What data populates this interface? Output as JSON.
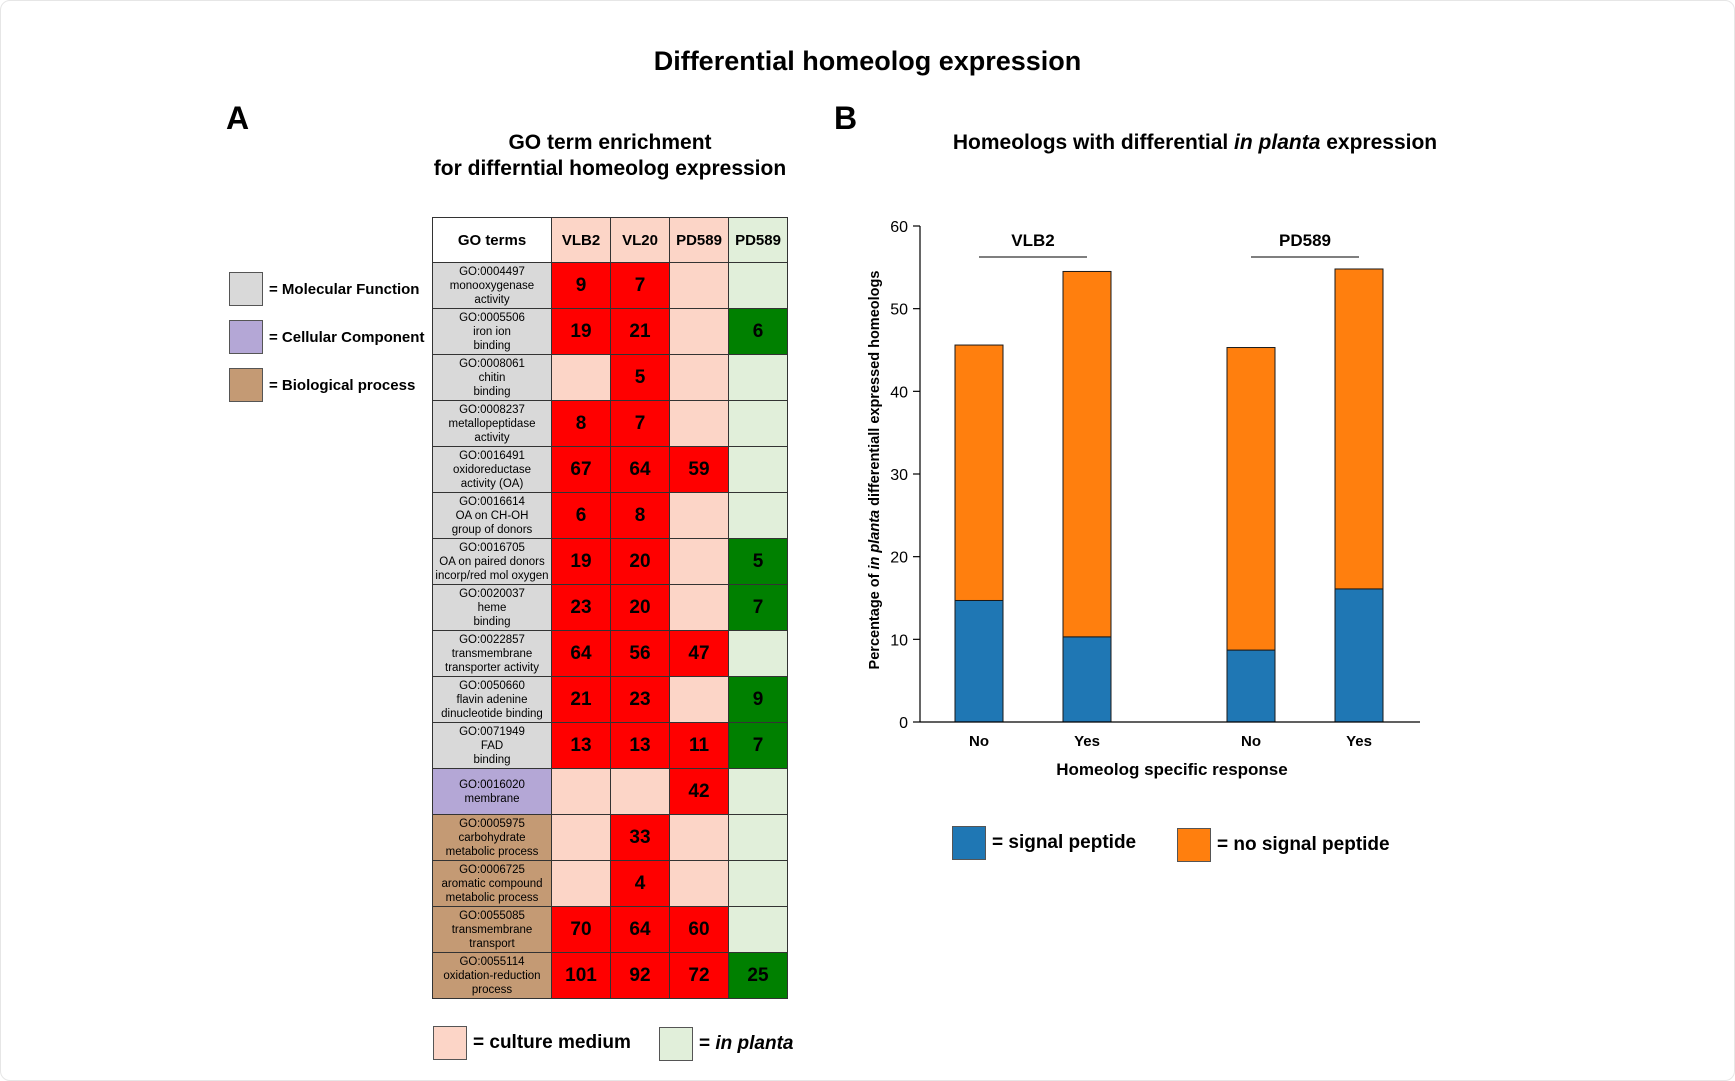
{
  "title": "Differential homeolog expression",
  "panel_a": {
    "letter": "A",
    "title_line1": "GO term enrichment",
    "title_line2": "for differntial homeolog expression",
    "category_legend": [
      {
        "label": "= Molecular Function",
        "color": "#d9d9d9"
      },
      {
        "label": "= Cellular Component",
        "color": "#b4a7d6"
      },
      {
        "label": "= Biological process",
        "color": "#c49a74"
      }
    ],
    "colors": {
      "molecular_function": "#d9d9d9",
      "cellular_component": "#b4a7d6",
      "biological_process": "#c49a74",
      "culture_medium": "#fcd5c7",
      "in_planta": "#e1efda",
      "enriched_culture": "#ff0000",
      "enriched_planta": "#008000"
    },
    "column_headers": [
      {
        "label": "GO terms",
        "kind": "term"
      },
      {
        "label": "VLB2",
        "kind": "culture"
      },
      {
        "label": "VL20",
        "kind": "culture"
      },
      {
        "label": "PD589",
        "kind": "culture"
      },
      {
        "label": "PD589",
        "kind": "planta"
      }
    ],
    "rows": [
      {
        "category": "molecular_function",
        "term_lines": [
          "GO:0004497",
          "monooxygenase",
          "activity"
        ],
        "values": [
          "9",
          "7",
          "",
          ""
        ]
      },
      {
        "category": "molecular_function",
        "term_lines": [
          "GO:0005506",
          "iron ion",
          "binding"
        ],
        "values": [
          "19",
          "21",
          "",
          "6"
        ]
      },
      {
        "category": "molecular_function",
        "term_lines": [
          "GO:0008061",
          "chitin",
          "binding"
        ],
        "values": [
          "",
          "5",
          "",
          ""
        ]
      },
      {
        "category": "molecular_function",
        "term_lines": [
          "GO:0008237",
          "metallopeptidase",
          "activity"
        ],
        "values": [
          "8",
          "7",
          "",
          ""
        ]
      },
      {
        "category": "molecular_function",
        "term_lines": [
          "GO:0016491",
          "oxidoreductase",
          "activity (OA)"
        ],
        "values": [
          "67",
          "64",
          "59",
          ""
        ]
      },
      {
        "category": "molecular_function",
        "term_lines": [
          "GO:0016614",
          "OA on CH-OH",
          "group of donors"
        ],
        "values": [
          "6",
          "8",
          "",
          ""
        ]
      },
      {
        "category": "molecular_function",
        "term_lines": [
          "GO:0016705",
          "OA on paired donors",
          "incorp/red mol oxygen"
        ],
        "values": [
          "19",
          "20",
          "",
          "5"
        ]
      },
      {
        "category": "molecular_function",
        "term_lines": [
          "GO:0020037",
          "heme",
          "binding"
        ],
        "values": [
          "23",
          "20",
          "",
          "7"
        ]
      },
      {
        "category": "molecular_function",
        "term_lines": [
          "GO:0022857",
          "transmembrane",
          "transporter activity"
        ],
        "values": [
          "64",
          "56",
          "47",
          ""
        ]
      },
      {
        "category": "molecular_function",
        "term_lines": [
          "GO:0050660",
          "flavin adenine",
          "dinucleotide binding"
        ],
        "values": [
          "21",
          "23",
          "",
          "9"
        ]
      },
      {
        "category": "molecular_function",
        "term_lines": [
          "GO:0071949",
          "FAD",
          "binding"
        ],
        "values": [
          "13",
          "13",
          "11",
          "7"
        ]
      },
      {
        "category": "cellular_component",
        "term_lines": [
          "GO:0016020",
          "membrane"
        ],
        "values": [
          "",
          "",
          "42",
          ""
        ]
      },
      {
        "category": "biological_process",
        "term_lines": [
          "GO:0005975",
          "carbohydrate",
          "metabolic process"
        ],
        "values": [
          "",
          "33",
          "",
          ""
        ]
      },
      {
        "category": "biological_process",
        "term_lines": [
          "GO:0006725",
          "aromatic compound",
          "metabolic process"
        ],
        "values": [
          "",
          "4",
          "",
          ""
        ]
      },
      {
        "category": "biological_process",
        "term_lines": [
          "GO:0055085",
          "transmembrane",
          "transport"
        ],
        "values": [
          "70",
          "64",
          "60",
          ""
        ]
      },
      {
        "category": "biological_process",
        "term_lines": [
          "GO:0055114",
          "oxidation-reduction",
          "process"
        ],
        "values": [
          "101",
          "92",
          "72",
          "25"
        ]
      }
    ],
    "medium_legend": {
      "culture_label": "= culture medium",
      "planta_prefix": "= ",
      "planta_italic": "in planta"
    }
  },
  "panel_b": {
    "letter": "B",
    "title_prefix": "Homeologs with differential ",
    "title_italic": "in planta",
    "title_suffix": " expression",
    "ylabel_prefix": "Percentage of ",
    "ylabel_italic": "in planta",
    "ylabel_suffix": " differentiall expressed homeologs",
    "legend": [
      {
        "label": "= signal peptide",
        "color": "#1f77b4"
      },
      {
        "label": "= no signal peptide",
        "color": "#ff7f0e"
      }
    ]
  },
  "chart_data": {
    "type": "bar",
    "stacked": true,
    "xlabel": "Homeolog specific response",
    "ylabel": "Percentage of in planta differentiall expressed homeologs",
    "ylim": [
      0,
      60
    ],
    "yticks": [
      0,
      10,
      20,
      30,
      40,
      50,
      60
    ],
    "groups": [
      {
        "label": "VLB2",
        "categories": [
          "No",
          "Yes"
        ]
      },
      {
        "label": "PD589",
        "categories": [
          "No",
          "Yes"
        ]
      }
    ],
    "categories": [
      "No",
      "Yes",
      "No",
      "Yes"
    ],
    "series": [
      {
        "name": "signal peptide",
        "color": "#1f77b4",
        "values": [
          14.7,
          10.3,
          8.7,
          16.1
        ]
      },
      {
        "name": "no signal peptide",
        "color": "#ff7f0e",
        "values": [
          30.9,
          44.2,
          36.6,
          38.7
        ]
      }
    ]
  }
}
